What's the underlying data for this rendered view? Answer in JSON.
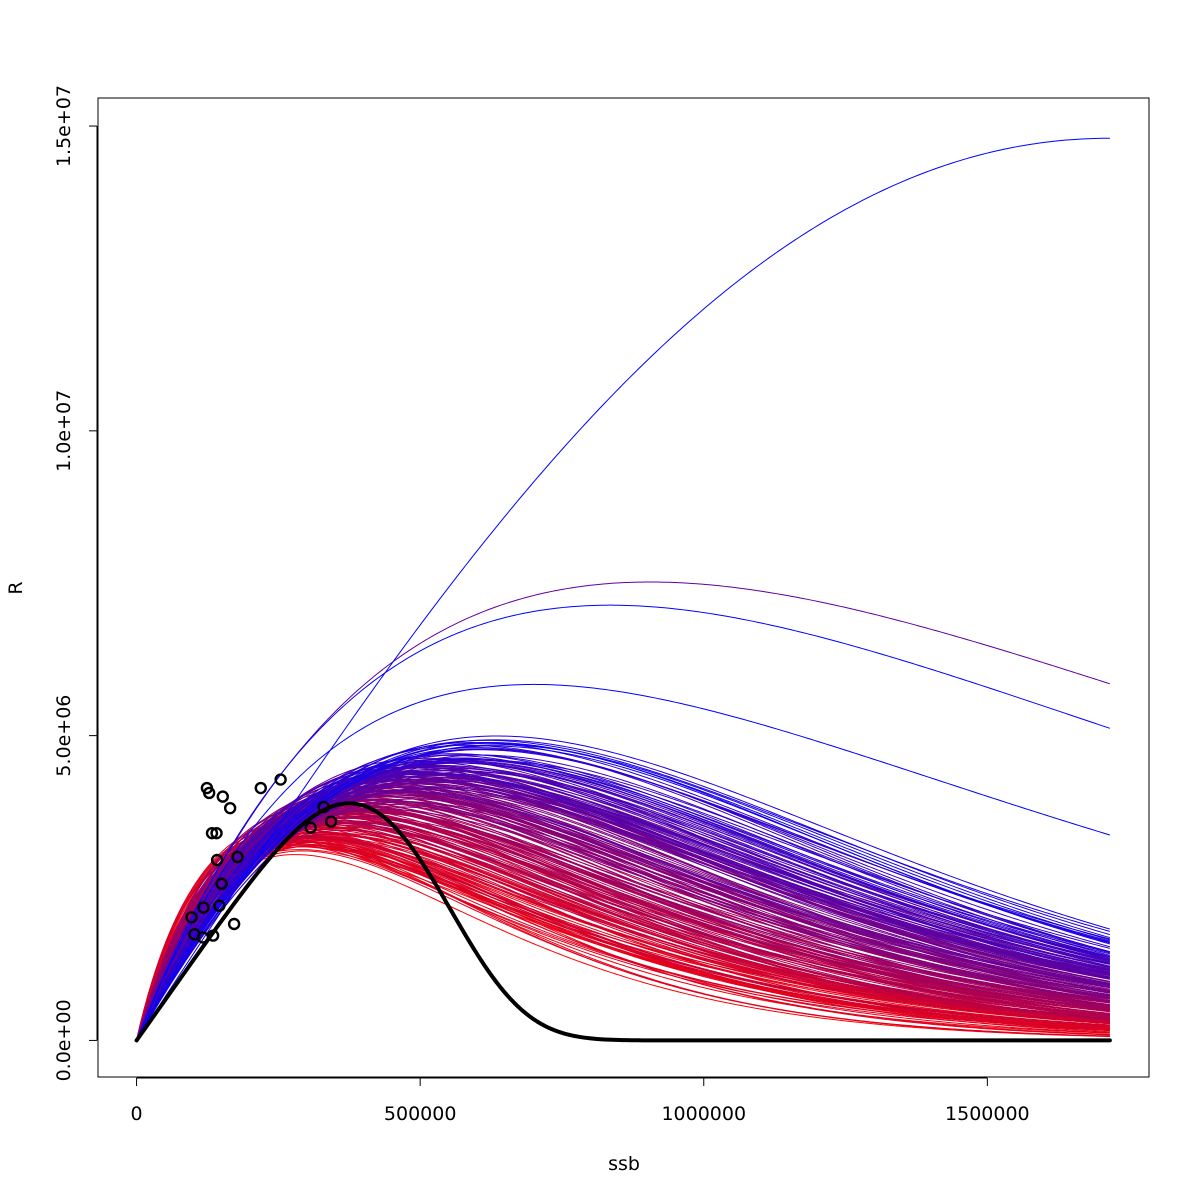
{
  "chart_data": {
    "type": "line",
    "title": "",
    "xlabel": "ssb",
    "ylabel": "R",
    "xlim": [
      -68000,
      1785000
    ],
    "ylim": [
      -600000,
      15460000
    ],
    "x_ticks": [
      {
        "value": 0,
        "label": "0"
      },
      {
        "value": 500000,
        "label": "500000"
      },
      {
        "value": 1000000,
        "label": "1000000"
      },
      {
        "value": 1500000,
        "label": "1500000"
      }
    ],
    "y_ticks": [
      {
        "value": 0,
        "label": "0.0e+00"
      },
      {
        "value": 5000000,
        "label": "5.0e+06"
      },
      {
        "value": 10000000,
        "label": "1.0e+07"
      },
      {
        "value": 15000000,
        "label": "1.5e+07"
      }
    ],
    "curve_x_max": 1716000,
    "grid": false,
    "legend": "none",
    "main_curve": {
      "form": "Rmax peaked (Shepherd-type)",
      "color": "#000000",
      "rmax": 3890000,
      "ssb_at_max": 375000,
      "c": 4.2,
      "end_value": 500000
    },
    "ensemble": {
      "count": 240,
      "color_low": "#ff0000",
      "color_high": "#0000ff",
      "highlight_curves": [
        {
          "rmax": 14800000,
          "ssb_at_max": 1716000,
          "end_value": 14800000
        },
        {
          "rmax": 7520000,
          "ssb_at_max": 905000,
          "end_value": 5850000
        },
        {
          "rmax": 7140000,
          "ssb_at_max": 835000,
          "end_value": 5120000
        },
        {
          "rmax": 5840000,
          "ssb_at_max": 700000,
          "end_value": 3370000
        }
      ]
    },
    "points": [
      {
        "x": 97000,
        "y": 2020000
      },
      {
        "x": 102000,
        "y": 1740000
      },
      {
        "x": 117000,
        "y": 1690000
      },
      {
        "x": 118000,
        "y": 2180000
      },
      {
        "x": 124000,
        "y": 4140000
      },
      {
        "x": 128000,
        "y": 4060000
      },
      {
        "x": 133000,
        "y": 3400000
      },
      {
        "x": 135000,
        "y": 1720000
      },
      {
        "x": 141000,
        "y": 3400000
      },
      {
        "x": 142000,
        "y": 2960000
      },
      {
        "x": 146000,
        "y": 2210000
      },
      {
        "x": 150000,
        "y": 2570000
      },
      {
        "x": 152000,
        "y": 4000000
      },
      {
        "x": 165000,
        "y": 3810000
      },
      {
        "x": 172000,
        "y": 1910000
      },
      {
        "x": 178000,
        "y": 3010000
      },
      {
        "x": 219000,
        "y": 4140000
      },
      {
        "x": 254000,
        "y": 4280000
      },
      {
        "x": 307000,
        "y": 3490000
      },
      {
        "x": 330000,
        "y": 3830000
      },
      {
        "x": 343000,
        "y": 3590000
      }
    ]
  }
}
